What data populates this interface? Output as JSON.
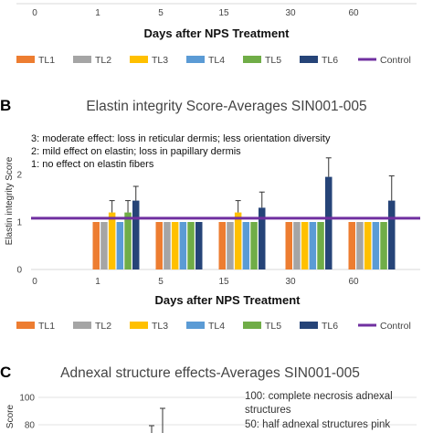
{
  "colors": {
    "TL1": "#ED7D31",
    "TL2": "#A5A5A5",
    "TL3": "#FFC000",
    "TL4": "#5B9BD5",
    "TL5": "#70AD47",
    "TL6": "#264478",
    "Control": "#7030A0"
  },
  "top": {
    "x_ticks": [
      "0",
      "1",
      "5",
      "15",
      "30",
      "60"
    ],
    "xlabel": "Days after NPS Treatment",
    "legend": [
      "TL1",
      "TL2",
      "TL3",
      "TL4",
      "TL5",
      "TL6",
      "Control"
    ]
  },
  "panel_b": {
    "letter": "B",
    "notes": [
      "3: moderate effect: loss in reticular dermis; less orientation diversity",
      "2: mild effect on elastin; loss in papillary dermis",
      "1: no effect on elastin fibers"
    ]
  },
  "panel_c": {
    "letter": "C",
    "title": "Adnexal structure effects-Averages SIN001-005",
    "ylabel": "Score",
    "y_ticks": [
      "100",
      "80"
    ],
    "notes": [
      "100: complete necrosis adnexal",
      "structures",
      "50: half adnexal structures pink"
    ]
  },
  "chart_data": [
    {
      "type": "bar",
      "title": "Elastin integrity Score-Averages SIN001-005",
      "xlabel": "Days after NPS Treatment",
      "ylabel": "Elastin integrity Score",
      "categories": [
        "0",
        "1",
        "5",
        "15",
        "30",
        "60"
      ],
      "ylim": [
        0,
        3
      ],
      "y_ticks": [
        "0",
        "1",
        "2",
        "3"
      ],
      "reference_line": {
        "name": "Control",
        "value": 1.08
      },
      "series": [
        {
          "name": "TL1",
          "values": [
            null,
            1,
            1,
            1,
            1,
            1
          ],
          "errors": [
            null,
            0,
            0,
            0,
            0,
            0
          ]
        },
        {
          "name": "TL2",
          "values": [
            null,
            1,
            1,
            1,
            1,
            1
          ],
          "errors": [
            null,
            0,
            0,
            0,
            0,
            0
          ]
        },
        {
          "name": "TL3",
          "values": [
            null,
            1.2,
            1,
            1.2,
            1,
            1
          ],
          "errors": [
            null,
            0.25,
            0,
            0.25,
            0,
            0
          ]
        },
        {
          "name": "TL4",
          "values": [
            null,
            1,
            1,
            1,
            1,
            1
          ],
          "errors": [
            null,
            0,
            0,
            0,
            0,
            0
          ]
        },
        {
          "name": "TL5",
          "values": [
            null,
            1.2,
            1,
            1,
            1,
            1
          ],
          "errors": [
            null,
            0.25,
            0,
            0,
            0,
            0
          ]
        },
        {
          "name": "TL6",
          "values": [
            null,
            1.45,
            1,
            1.3,
            1.95,
            1.45
          ],
          "errors": [
            null,
            0.3,
            0,
            0.33,
            0.4,
            0.52
          ]
        }
      ],
      "legend": [
        "TL1",
        "TL2",
        "TL3",
        "TL4",
        "TL5",
        "TL6",
        "Control"
      ]
    }
  ]
}
